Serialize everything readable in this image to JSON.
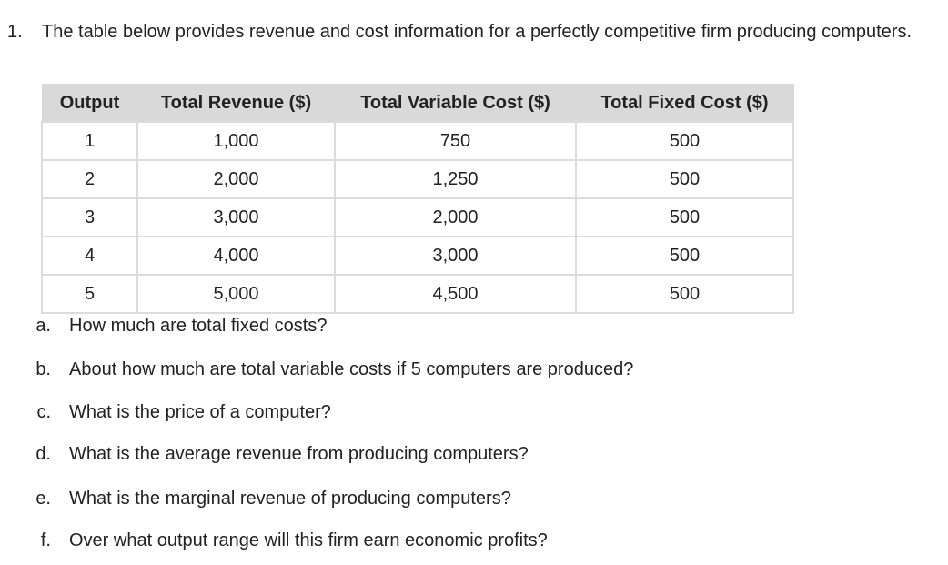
{
  "question": {
    "number": "1.",
    "stem": "The table below provides revenue and cost information for a perfectly competitive firm producing computers."
  },
  "table": {
    "headers": [
      "Output",
      "Total Revenue ($)",
      "Total Variable Cost ($)",
      "Total Fixed Cost ($)"
    ],
    "rows": [
      [
        "1",
        "1,000",
        "750",
        "500"
      ],
      [
        "2",
        "2,000",
        "1,250",
        "500"
      ],
      [
        "3",
        "3,000",
        "2,000",
        "500"
      ],
      [
        "4",
        "4,000",
        "3,000",
        "500"
      ],
      [
        "5",
        "5,000",
        "4,500",
        "500"
      ]
    ]
  },
  "subquestions": [
    {
      "letter": "a.",
      "text": "How much are total fixed costs?"
    },
    {
      "letter": "b.",
      "text": "About how much are total variable costs if 5 computers are produced?"
    },
    {
      "letter": "c.",
      "text": "What is the price of a computer?"
    },
    {
      "letter": "d.",
      "text": "What is the average revenue from producing computers?"
    },
    {
      "letter": "e.",
      "text": "What is the marginal revenue of producing computers?"
    },
    {
      "letter": "f.",
      "text": "Over what output range will this firm earn economic profits?"
    }
  ]
}
